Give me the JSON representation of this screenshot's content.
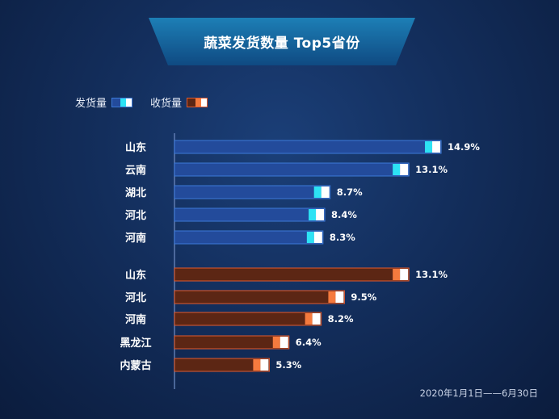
{
  "title": "蔬菜发货数量 Top5省份",
  "legend": [
    {
      "label": "发货量",
      "color": "#234b9b",
      "border": "#3c7ad8",
      "accent": "#2de2f4"
    },
    {
      "label": "收货量",
      "color": "#5c2614",
      "border": "#e05a2e",
      "accent": "#f57a3e"
    }
  ],
  "date_range": "2020年1月1日——6月30日",
  "chart_data": {
    "type": "bar",
    "orientation": "horizontal",
    "value_unit": "%",
    "groups": [
      {
        "name": "发货量",
        "color": "#234b9b",
        "border": "#3c7ad8",
        "accent": "#2de2f4",
        "categories": [
          "山东",
          "云南",
          "湖北",
          "河北",
          "河南"
        ],
        "values": [
          14.9,
          13.1,
          8.7,
          8.4,
          8.3
        ]
      },
      {
        "name": "收货量",
        "color": "#5c2614",
        "border": "#e05a2e",
        "accent": "#f57a3e",
        "categories": [
          "山东",
          "河北",
          "河南",
          "黑龙江",
          "内蒙古"
        ],
        "values": [
          13.1,
          9.5,
          8.2,
          6.4,
          5.3
        ]
      }
    ]
  }
}
